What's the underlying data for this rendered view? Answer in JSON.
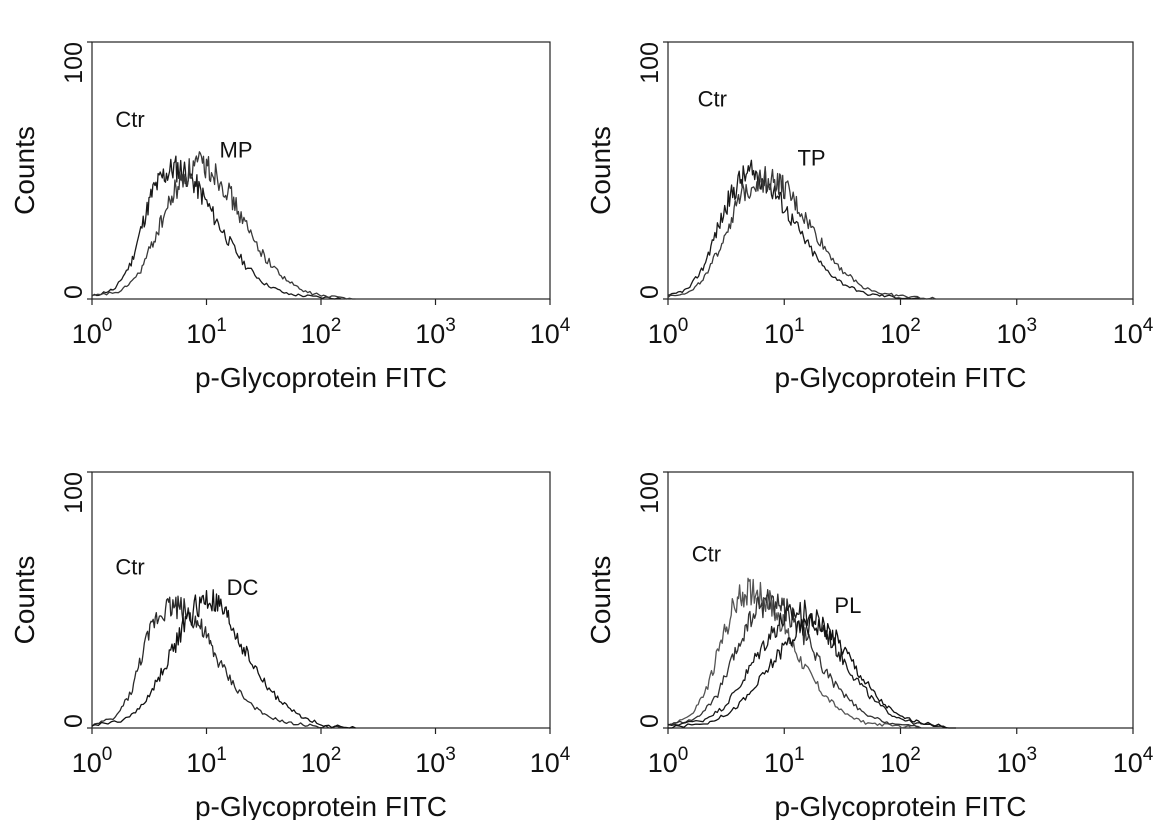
{
  "chart_data": [
    {
      "type": "line",
      "xscale": "log",
      "xlim": [
        1,
        10000
      ],
      "ylim": [
        0,
        100
      ],
      "xlabel": "p-Glycoprotein FITC",
      "ylabel": "Counts",
      "xticks": [
        {
          "value": 1,
          "base": "10",
          "exp": "0"
        },
        {
          "value": 10,
          "base": "10",
          "exp": "1"
        },
        {
          "value": 100,
          "base": "10",
          "exp": "2"
        },
        {
          "value": 1000,
          "base": "10",
          "exp": "3"
        },
        {
          "value": 10000,
          "base": "10",
          "exp": "4"
        }
      ],
      "yticks": [
        {
          "value": 0,
          "label": "0"
        },
        {
          "value": 100,
          "label": "100"
        }
      ],
      "annotations": [
        {
          "text": "Ctr",
          "x": 1.6,
          "y": 67
        },
        {
          "text": "MP",
          "x": 13,
          "y": 55
        }
      ],
      "series": [
        {
          "points": [
            [
              1.0,
              1
            ],
            [
              1.6,
              4
            ],
            [
              2.2,
              14
            ],
            [
              2.8,
              30
            ],
            [
              3.4,
              42
            ],
            [
              4.2,
              48
            ],
            [
              5.2,
              51
            ],
            [
              6.3,
              50
            ],
            [
              7.6,
              46
            ],
            [
              9.3,
              40
            ],
            [
              12,
              31
            ],
            [
              16,
              22
            ],
            [
              22,
              13
            ],
            [
              32,
              6
            ],
            [
              50,
              2
            ],
            [
              80,
              1
            ],
            [
              150,
              0
            ]
          ]
        },
        {
          "points": [
            [
              1.0,
              1
            ],
            [
              1.8,
              3
            ],
            [
              2.6,
              10
            ],
            [
              3.4,
              22
            ],
            [
              4.3,
              33
            ],
            [
              5.3,
              42
            ],
            [
              6.5,
              48
            ],
            [
              8.0,
              52
            ],
            [
              9.8,
              52
            ],
            [
              12,
              49
            ],
            [
              15,
              43
            ],
            [
              19,
              34
            ],
            [
              25,
              24
            ],
            [
              34,
              15
            ],
            [
              48,
              8
            ],
            [
              70,
              3
            ],
            [
              110,
              1
            ],
            [
              200,
              0
            ]
          ]
        }
      ]
    },
    {
      "type": "line",
      "xscale": "log",
      "xlim": [
        1,
        10000
      ],
      "ylim": [
        0,
        100
      ],
      "xlabel": "p-Glycoprotein FITC",
      "ylabel": "Counts",
      "xticks": [
        {
          "value": 1,
          "base": "10",
          "exp": "0"
        },
        {
          "value": 10,
          "base": "10",
          "exp": "1"
        },
        {
          "value": 100,
          "base": "10",
          "exp": "2"
        },
        {
          "value": 1000,
          "base": "10",
          "exp": "3"
        },
        {
          "value": 10000,
          "base": "10",
          "exp": "4"
        }
      ],
      "yticks": [
        {
          "value": 0,
          "label": "0"
        },
        {
          "value": 100,
          "label": "100"
        }
      ],
      "annotations": [
        {
          "text": "Ctr",
          "x": 1.8,
          "y": 75
        },
        {
          "text": "TP",
          "x": 13,
          "y": 52
        }
      ],
      "series": [
        {
          "points": [
            [
              1.0,
              1
            ],
            [
              1.5,
              4
            ],
            [
              2.0,
              12
            ],
            [
              2.6,
              26
            ],
            [
              3.3,
              38
            ],
            [
              4.1,
              46
            ],
            [
              5.0,
              49
            ],
            [
              6.2,
              48
            ],
            [
              7.6,
              44
            ],
            [
              9.4,
              38
            ],
            [
              12,
              30
            ],
            [
              16,
              21
            ],
            [
              22,
              12
            ],
            [
              32,
              6
            ],
            [
              50,
              2
            ],
            [
              80,
              1
            ],
            [
              150,
              0
            ]
          ]
        },
        {
          "points": [
            [
              1.0,
              1
            ],
            [
              1.6,
              3
            ],
            [
              2.2,
              10
            ],
            [
              2.9,
              22
            ],
            [
              3.7,
              34
            ],
            [
              4.6,
              42
            ],
            [
              5.7,
              46
            ],
            [
              7.0,
              47
            ],
            [
              8.6,
              46
            ],
            [
              10.5,
              42
            ],
            [
              13,
              36
            ],
            [
              17,
              28
            ],
            [
              23,
              19
            ],
            [
              32,
              11
            ],
            [
              46,
              5
            ],
            [
              70,
              2
            ],
            [
              110,
              1
            ],
            [
              200,
              0
            ]
          ]
        }
      ]
    },
    {
      "type": "line",
      "xscale": "log",
      "xlim": [
        1,
        10000
      ],
      "ylim": [
        0,
        100
      ],
      "xlabel": "p-Glycoprotein FITC",
      "ylabel": "Counts",
      "xticks": [
        {
          "value": 1,
          "base": "10",
          "exp": "0"
        },
        {
          "value": 10,
          "base": "10",
          "exp": "1"
        },
        {
          "value": 100,
          "base": "10",
          "exp": "2"
        },
        {
          "value": 1000,
          "base": "10",
          "exp": "3"
        },
        {
          "value": 10000,
          "base": "10",
          "exp": "4"
        }
      ],
      "yticks": [
        {
          "value": 0,
          "label": "0"
        },
        {
          "value": 100,
          "label": "100"
        }
      ],
      "annotations": [
        {
          "text": "Ctr",
          "x": 1.6,
          "y": 60
        },
        {
          "text": "DC",
          "x": 15,
          "y": 52
        }
      ],
      "series": [
        {
          "points": [
            [
              1.0,
              1
            ],
            [
              1.6,
              4
            ],
            [
              2.2,
              14
            ],
            [
              2.8,
              30
            ],
            [
              3.5,
              42
            ],
            [
              4.3,
              47
            ],
            [
              5.3,
              48
            ],
            [
              6.5,
              46
            ],
            [
              8.0,
              42
            ],
            [
              9.8,
              36
            ],
            [
              12,
              28
            ],
            [
              16,
              19
            ],
            [
              22,
              11
            ],
            [
              32,
              5
            ],
            [
              50,
              2
            ],
            [
              80,
              1
            ],
            [
              150,
              0
            ]
          ]
        },
        {
          "points": [
            [
              1.0,
              1
            ],
            [
              1.9,
              3
            ],
            [
              2.8,
              9
            ],
            [
              3.8,
              19
            ],
            [
              5.0,
              30
            ],
            [
              6.4,
              40
            ],
            [
              8.0,
              47
            ],
            [
              10,
              50
            ],
            [
              12.5,
              48
            ],
            [
              15.5,
              42
            ],
            [
              19,
              35
            ],
            [
              25,
              25
            ],
            [
              34,
              16
            ],
            [
              48,
              9
            ],
            [
              70,
              4
            ],
            [
              110,
              1
            ],
            [
              200,
              0
            ]
          ]
        }
      ]
    },
    {
      "type": "line",
      "xscale": "log",
      "xlim": [
        1,
        10000
      ],
      "ylim": [
        0,
        100
      ],
      "xlabel": "p-Glycoprotein FITC",
      "ylabel": "Counts",
      "xticks": [
        {
          "value": 1,
          "base": "10",
          "exp": "0"
        },
        {
          "value": 10,
          "base": "10",
          "exp": "1"
        },
        {
          "value": 100,
          "base": "10",
          "exp": "2"
        },
        {
          "value": 1000,
          "base": "10",
          "exp": "3"
        },
        {
          "value": 10000,
          "base": "10",
          "exp": "4"
        }
      ],
      "yticks": [
        {
          "value": 0,
          "label": "0"
        },
        {
          "value": 100,
          "label": "100"
        }
      ],
      "annotations": [
        {
          "text": "Ctr",
          "x": 1.6,
          "y": 65
        },
        {
          "text": "PL",
          "x": 27,
          "y": 45
        }
      ],
      "series": [
        {
          "points": [
            [
              1.0,
              1
            ],
            [
              1.6,
              5
            ],
            [
              2.2,
              16
            ],
            [
              2.8,
              32
            ],
            [
              3.5,
              45
            ],
            [
              4.3,
              52
            ],
            [
              5.3,
              54
            ],
            [
              6.5,
              52
            ],
            [
              8.0,
              47
            ],
            [
              9.8,
              40
            ],
            [
              12,
              32
            ],
            [
              16,
              22
            ],
            [
              22,
              13
            ],
            [
              32,
              6
            ],
            [
              50,
              2
            ],
            [
              80,
              1
            ],
            [
              150,
              0
            ]
          ]
        },
        {
          "points": [
            [
              1.0,
              1
            ],
            [
              1.8,
              4
            ],
            [
              2.6,
              12
            ],
            [
              3.5,
              25
            ],
            [
              4.5,
              37
            ],
            [
              5.7,
              46
            ],
            [
              7.2,
              50
            ],
            [
              9.0,
              49
            ],
            [
              11,
              45
            ],
            [
              14,
              38
            ],
            [
              18,
              30
            ],
            [
              24,
              20
            ],
            [
              34,
              12
            ],
            [
              50,
              5
            ],
            [
              80,
              2
            ],
            [
              150,
              0
            ]
          ]
        },
        {
          "points": [
            [
              1.0,
              1
            ],
            [
              2.0,
              3
            ],
            [
              3.0,
              8
            ],
            [
              4.2,
              17
            ],
            [
              5.6,
              27
            ],
            [
              7.4,
              36
            ],
            [
              9.5,
              42
            ],
            [
              12,
              45
            ],
            [
              15,
              45
            ],
            [
              19,
              42
            ],
            [
              24,
              36
            ],
            [
              31,
              28
            ],
            [
              42,
              19
            ],
            [
              58,
              11
            ],
            [
              85,
              5
            ],
            [
              130,
              2
            ],
            [
              250,
              0
            ]
          ]
        },
        {
          "points": [
            [
              1.0,
              0
            ],
            [
              2.2,
              2
            ],
            [
              3.4,
              6
            ],
            [
              5.0,
              13
            ],
            [
              7.0,
              22
            ],
            [
              9.6,
              31
            ],
            [
              13,
              38
            ],
            [
              17,
              41
            ],
            [
              22,
              40
            ],
            [
              28,
              35
            ],
            [
              36,
              28
            ],
            [
              48,
              19
            ],
            [
              66,
              11
            ],
            [
              95,
              5
            ],
            [
              150,
              2
            ],
            [
              300,
              0
            ]
          ]
        }
      ]
    }
  ]
}
